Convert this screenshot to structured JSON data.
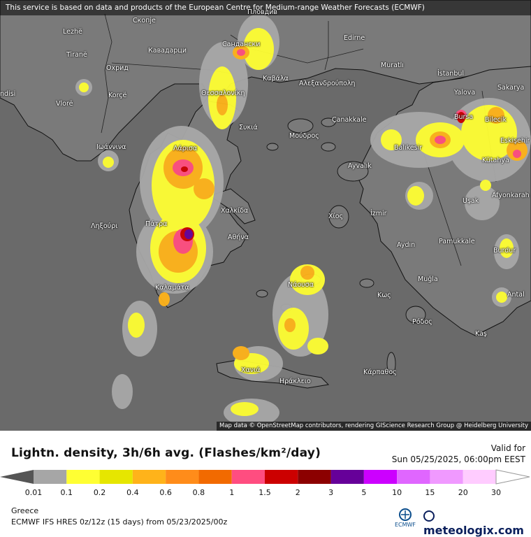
{
  "banner": "This service is based on data and products of the European Centre for Medium-range Weather Forecasts (ECMWF)",
  "attribution": "Map data © OpenStreetMap contributors, rendering GIScience Research Group @ Heidelberg University",
  "cities": [
    {
      "name": "Lezhë"
    },
    {
      "name": "Скопје"
    },
    {
      "name": "Пловдив"
    },
    {
      "name": "Edirne"
    },
    {
      "name": "Tiranë"
    },
    {
      "name": "Кавадарци"
    },
    {
      "name": "Сандански"
    },
    {
      "name": "Muratlı"
    },
    {
      "name": "Охрид"
    },
    {
      "name": "Καβάλα"
    },
    {
      "name": "Αλεξανδρούπολη"
    },
    {
      "name": "İstanbul"
    },
    {
      "name": "ndisi"
    },
    {
      "name": "Korçë"
    },
    {
      "name": "Θεσσαλονίκη"
    },
    {
      "name": "Yalova"
    },
    {
      "name": "Sakarya"
    },
    {
      "name": "Vlorë"
    },
    {
      "name": "Συκιά"
    },
    {
      "name": "Çanakkale"
    },
    {
      "name": "Bursa"
    },
    {
      "name": "Bilecik"
    },
    {
      "name": "Μούδρος"
    },
    {
      "name": "Ιωάννινα"
    },
    {
      "name": "Λάρισα"
    },
    {
      "name": "Balıkesir"
    },
    {
      "name": "Eskişehir"
    },
    {
      "name": "Kütahya"
    },
    {
      "name": "Ayvalık"
    },
    {
      "name": "Uşak"
    },
    {
      "name": "Afyonkarah"
    },
    {
      "name": "Χαλκίδα"
    },
    {
      "name": "İzmir"
    },
    {
      "name": "Χίος"
    },
    {
      "name": "Ληξούρι"
    },
    {
      "name": "Πάτρα"
    },
    {
      "name": "Αθήνα"
    },
    {
      "name": "Aydın"
    },
    {
      "name": "Pamukkale"
    },
    {
      "name": "Burdur"
    },
    {
      "name": "Νάουσα"
    },
    {
      "name": "Muğla"
    },
    {
      "name": "Καλαμάτα"
    },
    {
      "name": "Κως"
    },
    {
      "name": "Antal"
    },
    {
      "name": "Ρόδος"
    },
    {
      "name": "Kaş"
    },
    {
      "name": "Χανιά"
    },
    {
      "name": "Κάρπαθος"
    },
    {
      "name": "Ηράκλειο"
    }
  ],
  "legend": {
    "title": "Lightn. density, 3h/6h avg. (Flashes/km²/day)",
    "valid_label": "Valid for",
    "valid_time": "Sun 05/25/2025, 06:00pm EEST",
    "colors": [
      "#a6a6a6",
      "#ffff33",
      "#e6e600",
      "#ffb31a",
      "#ff8c1a",
      "#f26a00",
      "#ff4d80",
      "#cc0000",
      "#8c0000",
      "#660099",
      "#cc00ff",
      "#e066ff",
      "#f099ff",
      "#ffccff"
    ],
    "ticks": [
      "0.01",
      "0.1",
      "0.2",
      "0.4",
      "0.6",
      "0.8",
      "1",
      "1.5",
      "2",
      "3",
      "5",
      "10",
      "15",
      "20",
      "30"
    ],
    "region": "Greece",
    "model": "ECMWF IFS HRES 0z/12z (15 days) from  05/23/2025/00z",
    "ecmwf_label": "ECMWF",
    "brand": "meteologix.com"
  }
}
